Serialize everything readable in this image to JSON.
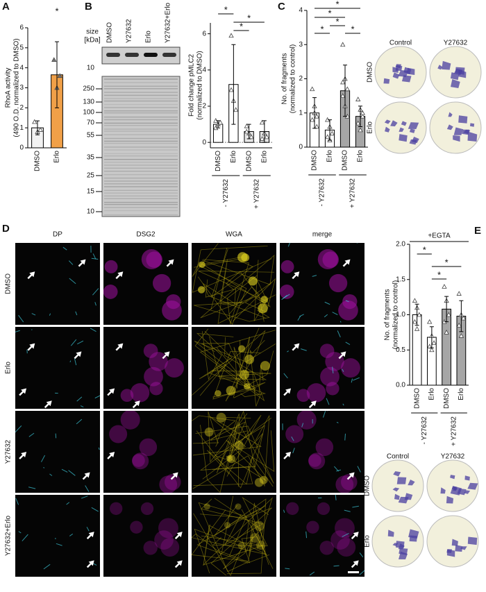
{
  "panel_labels": [
    "A",
    "B",
    "C",
    "D",
    "E"
  ],
  "chart_data": [
    {
      "type": "bar",
      "y_label": [
        "RhoA activity",
        "(490 O.D. normalized to DMSO)"
      ],
      "categories": [
        "DMSO",
        "Erlo"
      ],
      "values": [
        1.0,
        3.65
      ],
      "errors": [
        0.35,
        1.65
      ],
      "points": [
        [
          1.3,
          0.8,
          0.9
        ],
        [
          4.4,
          3.0,
          3.6
        ]
      ],
      "colors": [
        "#f2f2f2",
        "#f0a048"
      ],
      "ylim": [
        0,
        6
      ],
      "yticks": [
        0,
        1,
        2,
        3,
        4,
        5,
        6
      ],
      "annotations": [
        "*"
      ]
    },
    {
      "type": "bar",
      "y_label": [
        "Fold change pMLC2",
        "(normalized to DMSO)"
      ],
      "categories": [
        "DMSO",
        "Erlo",
        "DMSO",
        "Erlo"
      ],
      "groups": [
        "- Y27632",
        "+ Y27632"
      ],
      "values": [
        1.0,
        3.2,
        0.6,
        0.6
      ],
      "errors": [
        0.2,
        2.2,
        0.4,
        0.6
      ],
      "points": [
        [
          0.8,
          1.0,
          1.1,
          1.2
        ],
        [
          5.9,
          2.3,
          1.8,
          2.9
        ],
        [
          0.9,
          0.5,
          0.3,
          0.6
        ],
        [
          1.1,
          0.5,
          0.3,
          0.2
        ]
      ],
      "colors": [
        "#ffffff",
        "#ffffff",
        "#e6e6e6",
        "#e6e6e6"
      ],
      "ylim": [
        -0.3,
        6.6
      ],
      "yticks": [
        0,
        2,
        4,
        6
      ],
      "annotations": [
        "*",
        "*",
        "*"
      ]
    },
    {
      "type": "bar",
      "y_label": [
        "No. of fragments",
        "(normalized to control)"
      ],
      "categories": [
        "DMSO",
        "Erlo",
        "DMSO",
        "Erlo"
      ],
      "groups": [
        "- Y27632",
        "+ Y27632"
      ],
      "values": [
        1.0,
        0.5,
        1.65,
        0.9
      ],
      "errors": [
        0.45,
        0.3,
        0.75,
        0.3
      ],
      "points": [
        [
          1.7,
          1.2,
          0.9,
          0.8,
          1.0,
          0.6
        ],
        [
          0.8,
          0.6,
          0.4,
          0.3,
          0.2
        ],
        [
          3.0,
          2.0,
          1.7,
          1.5,
          1.2,
          0.9,
          1.9
        ],
        [
          1.4,
          1.1,
          0.9,
          0.7,
          0.5,
          1.0
        ]
      ],
      "colors": [
        "#ffffff",
        "#ffffff",
        "#a6a6a6",
        "#a6a6a6"
      ],
      "ylim": [
        0,
        4
      ],
      "yticks": [
        0,
        1,
        2,
        3,
        4
      ],
      "annotations": [
        "*",
        "*",
        "*",
        "*",
        "*"
      ]
    },
    {
      "type": "bar",
      "title": "+EGTA",
      "y_label": [
        "No. of fragments",
        "(normalized to control)"
      ],
      "categories": [
        "DMSO",
        "Erlo",
        "DMSO",
        "Erlo"
      ],
      "groups": [
        "- Y27632",
        "+ Y27632"
      ],
      "values": [
        1.0,
        0.68,
        1.08,
        0.98
      ],
      "errors": [
        0.15,
        0.15,
        0.18,
        0.22
      ],
      "points": [
        [
          1.2,
          1.1,
          1.0,
          0.9,
          0.8
        ],
        [
          0.9,
          0.7,
          0.6,
          0.55,
          0.5
        ],
        [
          1.4,
          1.2,
          1.0,
          0.9,
          0.75
        ],
        [
          1.3,
          1.0,
          0.95,
          0.85,
          0.7
        ]
      ],
      "colors": [
        "#ffffff",
        "#ffffff",
        "#a6a6a6",
        "#a6a6a6"
      ],
      "ylim": [
        0,
        2
      ],
      "yticks": [
        {
          "value": 0,
          "label": "0.0"
        },
        {
          "value": 0.5,
          "label": "0.5"
        },
        {
          "value": 1,
          "label": "1.0"
        },
        {
          "value": 1.5,
          "label": "1.5"
        },
        {
          "value": 2,
          "label": "2.0"
        }
      ],
      "annotations": [
        "*",
        "*",
        "*"
      ]
    }
  ],
  "blot": {
    "size_label": [
      "size",
      "[kDa]"
    ],
    "lanes": [
      "DMSO",
      "Y27632",
      "Erlo",
      "Y27632+Erlo"
    ],
    "top_marker": "10",
    "markers": [
      "250",
      "130",
      "100",
      "70",
      "55",
      "35",
      "25",
      "15",
      "10"
    ]
  },
  "microscopy": {
    "channels": [
      "DP",
      "DSG2",
      "WGA",
      "merge"
    ],
    "conditions": [
      "DMSO",
      "Erlo",
      "Y27632",
      "Y27632+Erlo"
    ]
  },
  "plates_c": {
    "columns": [
      "Control",
      "Y27632"
    ],
    "rows": [
      "DMSO",
      "Erlo"
    ]
  },
  "plates_e": {
    "columns": [
      "Control",
      "Y27632"
    ],
    "rows": [
      "DMSO",
      "Erlo"
    ]
  }
}
